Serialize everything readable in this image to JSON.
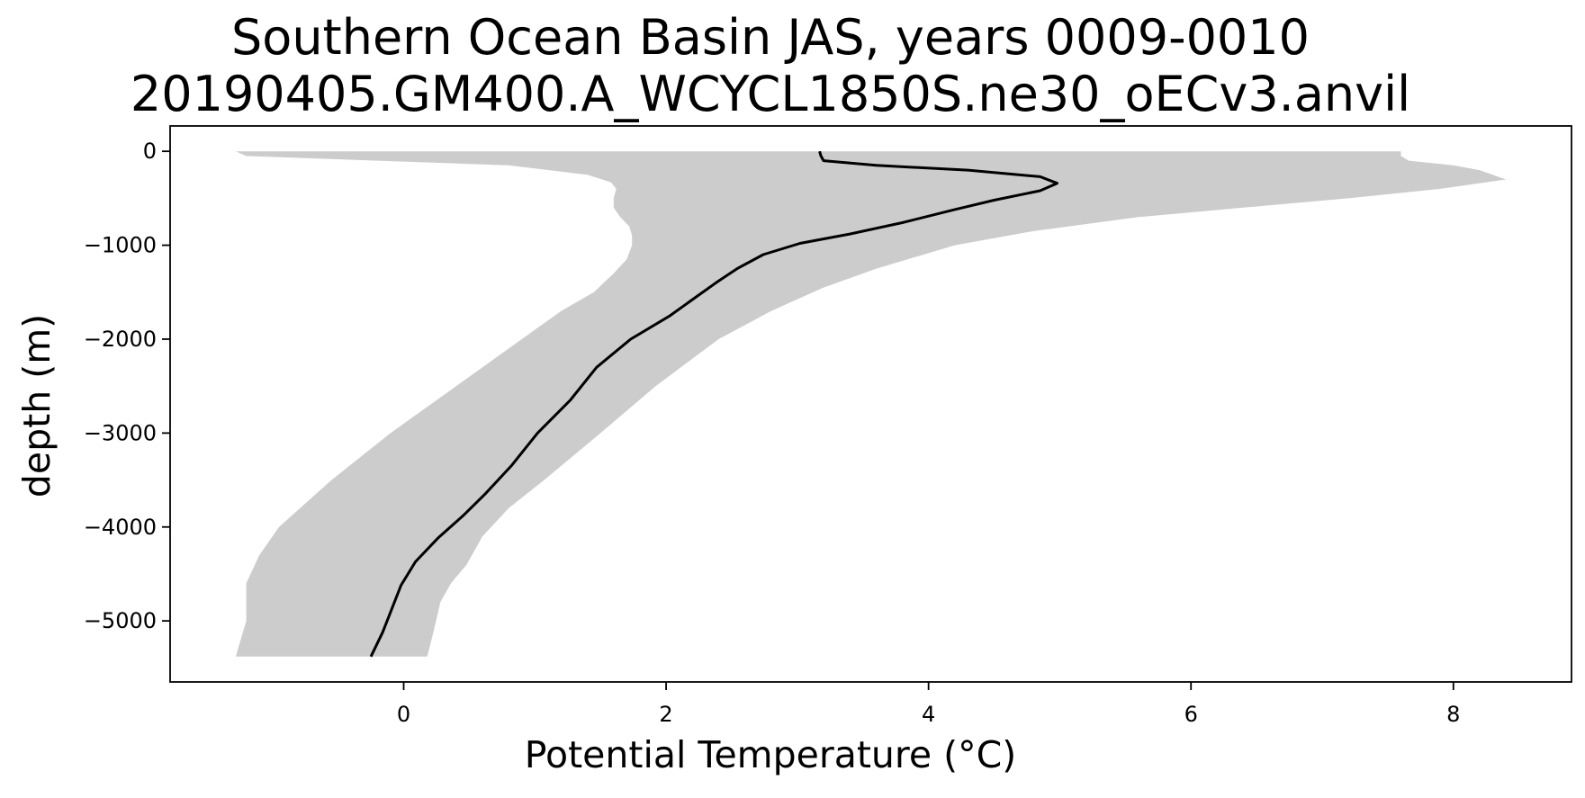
{
  "chart_data": {
    "type": "line",
    "title": [
      "Southern Ocean Basin JAS, years 0009-0010",
      "20190405.GM400.A_WCYCL1850S.ne30_oECv3.anvil"
    ],
    "xlabel": "Potential Temperature (°C)",
    "ylabel": "depth (m)",
    "xlim": [
      -1.78,
      8.9
    ],
    "ylim": [
      -5650,
      270
    ],
    "x_ticks": [
      0,
      2,
      4,
      6,
      8
    ],
    "y_ticks": [
      0,
      -1000,
      -2000,
      -3000,
      -4000,
      -5000
    ],
    "x_tick_labels": [
      "0",
      "2",
      "4",
      "6",
      "8"
    ],
    "y_tick_labels": [
      "0",
      "−1000",
      "−2000",
      "−3000",
      "−4000",
      "−5000"
    ],
    "grid": false,
    "colors": {
      "line": "#000000",
      "band": "#cccccc",
      "frame": "#000000"
    },
    "series": [
      {
        "name": "mean",
        "depth": [
          0,
          -50,
          -100,
          -150,
          -200,
          -270,
          -340,
          -420,
          -520,
          -620,
          -760,
          -880,
          -980,
          -1100,
          -1250,
          -1400,
          -1560,
          -1750,
          -2000,
          -2300,
          -2650,
          -3000,
          -3350,
          -3650,
          -3870,
          -4120,
          -4370,
          -4620,
          -4870,
          -5120,
          -5380
        ],
        "temp": [
          3.17,
          3.18,
          3.2,
          3.6,
          4.3,
          4.85,
          4.98,
          4.85,
          4.5,
          4.2,
          3.8,
          3.4,
          3.02,
          2.74,
          2.54,
          2.38,
          2.22,
          2.03,
          1.73,
          1.47,
          1.27,
          1.02,
          0.82,
          0.62,
          0.46,
          0.26,
          0.09,
          -0.02,
          -0.09,
          -0.16,
          -0.25
        ]
      },
      {
        "name": "range-min",
        "depth": [
          0,
          -50,
          -150,
          -250,
          -330,
          -400,
          -500,
          -600,
          -700,
          -800,
          -900,
          -1000,
          -1150,
          -1300,
          -1500,
          -1700,
          -2000,
          -2500,
          -3000,
          -3500,
          -4000,
          -4300,
          -4600,
          -5000,
          -5380
        ],
        "temp": [
          -1.28,
          -1.2,
          0.8,
          1.4,
          1.58,
          1.62,
          1.6,
          1.6,
          1.65,
          1.72,
          1.74,
          1.74,
          1.7,
          1.6,
          1.45,
          1.2,
          0.9,
          0.4,
          -0.1,
          -0.55,
          -0.95,
          -1.1,
          -1.2,
          -1.2,
          -1.28
        ]
      },
      {
        "name": "range-max",
        "depth": [
          0,
          -50,
          -100,
          -150,
          -200,
          -300,
          -400,
          -500,
          -600,
          -700,
          -850,
          -1000,
          -1250,
          -1450,
          -1700,
          -2000,
          -2500,
          -3000,
          -3500,
          -3800,
          -4100,
          -4400,
          -4600,
          -4800,
          -5100,
          -5380
        ],
        "temp": [
          7.6,
          7.6,
          7.66,
          8.0,
          8.2,
          8.4,
          7.9,
          7.2,
          6.4,
          5.6,
          4.8,
          4.2,
          3.6,
          3.2,
          2.8,
          2.4,
          1.92,
          1.5,
          1.07,
          0.8,
          0.6,
          0.48,
          0.36,
          0.28,
          0.23,
          0.18
        ]
      }
    ]
  }
}
